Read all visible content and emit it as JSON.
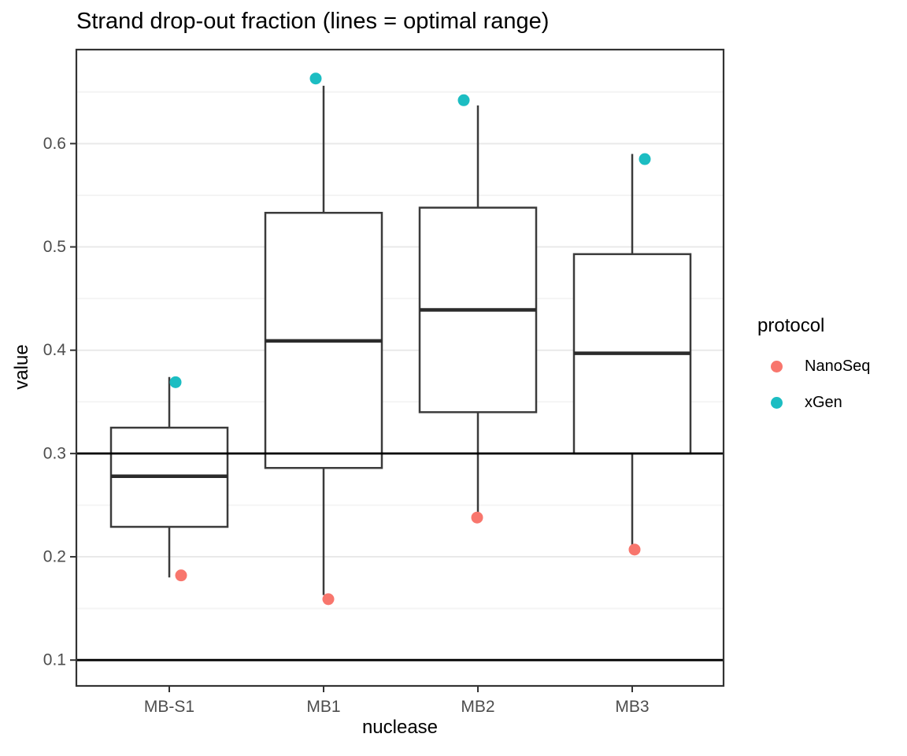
{
  "chart_data": {
    "type": "boxplot",
    "title": "Strand drop-out fraction (lines = optimal range)",
    "xlabel": "nuclease",
    "ylabel": "value",
    "categories": [
      "MB-S1",
      "MB1",
      "MB2",
      "MB3"
    ],
    "ylim": [
      0.075,
      0.691
    ],
    "y_ticks": [
      {
        "value": 0.1,
        "label": "0.1"
      },
      {
        "value": 0.2,
        "label": "0.2"
      },
      {
        "value": 0.3,
        "label": "0.3"
      },
      {
        "value": 0.4,
        "label": "0.4"
      },
      {
        "value": 0.5,
        "label": "0.5"
      },
      {
        "value": 0.6,
        "label": "0.6"
      }
    ],
    "y_minor_ticks": [
      0.15,
      0.25,
      0.35,
      0.45,
      0.55,
      0.65
    ],
    "grid": true,
    "reference_lines": {
      "values": [
        0.3,
        0.1
      ],
      "note": "optimal range"
    },
    "boxes": [
      {
        "category": "MB-S1",
        "whisker_low": 0.18,
        "q1": 0.229,
        "median": 0.278,
        "q3": 0.325,
        "whisker_high": 0.374
      },
      {
        "category": "MB1",
        "whisker_low": 0.163,
        "q1": 0.286,
        "median": 0.409,
        "q3": 0.533,
        "whisker_high": 0.656
      },
      {
        "category": "MB2",
        "whisker_low": 0.24,
        "q1": 0.34,
        "median": 0.439,
        "q3": 0.538,
        "whisker_high": 0.637
      },
      {
        "category": "MB3",
        "whisker_low": 0.211,
        "q1": 0.3,
        "median": 0.397,
        "q3": 0.493,
        "whisker_high": 0.59
      }
    ],
    "point_series": [
      {
        "name": "NanoSeq",
        "color": "#F8766D",
        "values": [
          0.182,
          0.159,
          0.238,
          0.207
        ],
        "x_offsets": [
          15,
          6,
          -1,
          3
        ]
      },
      {
        "name": "xGen",
        "color": "#1CBDC2",
        "values": [
          0.369,
          0.663,
          0.642,
          0.585
        ],
        "x_offsets": [
          8,
          -10,
          -18,
          16
        ]
      }
    ],
    "legend": {
      "title": "protocol",
      "position": "right"
    },
    "colors": {
      "box_stroke": "#3b3b3b",
      "median": "#2b2b2b",
      "reference_line": "#000000",
      "grid_major": "#e9e9e9",
      "grid_minor": "#f4f4f4",
      "panel_border": "#333333",
      "tick_label": "#4d4d4d",
      "box_fill": "#ffffff"
    }
  }
}
